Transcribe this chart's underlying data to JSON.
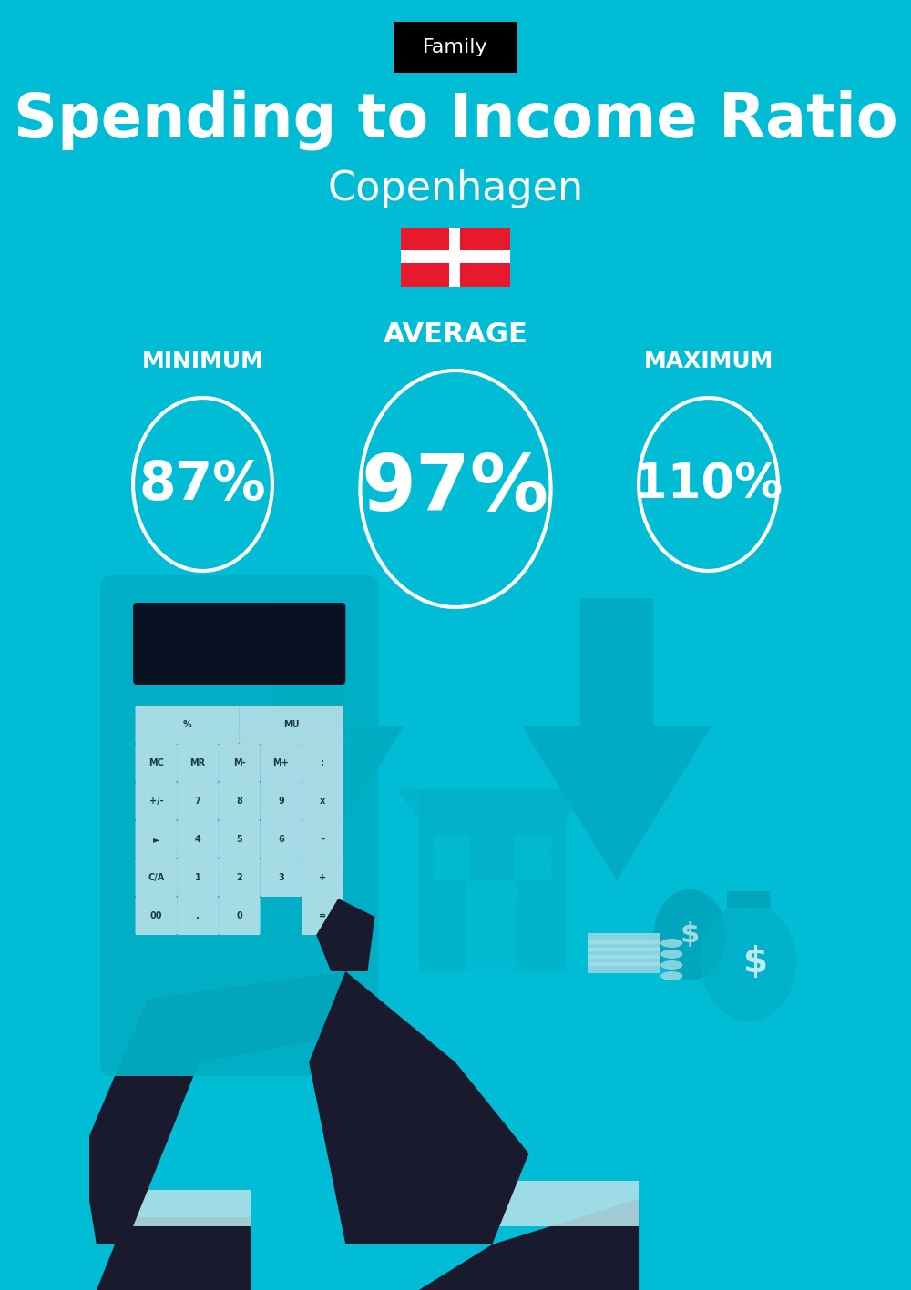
{
  "bg_color": "#00bcd4",
  "title_label": "Family",
  "title_label_bg": "#000000",
  "title_label_color": "#ffffff",
  "main_title": "Spending to Income Ratio",
  "subtitle": "Copenhagen",
  "min_label": "MINIMUM",
  "avg_label": "AVERAGE",
  "max_label": "MAXIMUM",
  "min_value": "87%",
  "avg_value": "97%",
  "max_value": "110%",
  "circle_color": "#ffffff",
  "text_color": "#ffffff",
  "circle_linewidth": 3,
  "flag_red": "#e8192c",
  "flag_white": "#ffffff",
  "arrow_color": "#009db5",
  "house_color": "#00afc5",
  "calc_color": "#00afc5",
  "calc_screen_color": "#0a0a1a",
  "btn_color": "#b8e0e8",
  "btn_text_color": "#1a3a4a",
  "hand_color": "#1a1a2e",
  "cuff_color": "#b0e0e8",
  "money_color": "#a8dce5",
  "bag1_color": "#009db5",
  "bag2_color": "#00afc5"
}
